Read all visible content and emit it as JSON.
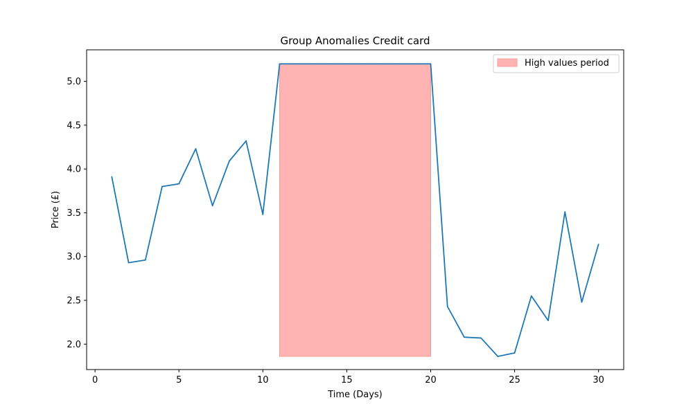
{
  "chart_data": {
    "type": "line",
    "title": "Group Anomalies Credit card",
    "xlabel": "Time (Days)",
    "ylabel": "Price (£)",
    "xlim": [
      -0.5,
      31.5
    ],
    "ylim": [
      1.71,
      5.36
    ],
    "xticks": [
      0,
      5,
      10,
      15,
      20,
      25,
      30
    ],
    "xtick_labels": [
      "0",
      "5",
      "10",
      "15",
      "20",
      "25",
      "30"
    ],
    "yticks": [
      2.0,
      2.5,
      3.0,
      3.5,
      4.0,
      4.5,
      5.0
    ],
    "ytick_labels": [
      "2.0",
      "2.5",
      "3.0",
      "3.5",
      "4.0",
      "4.5",
      "5.0"
    ],
    "grid": false,
    "legend_position": "top-right",
    "series": [
      {
        "color": "#1f77b4",
        "x": [
          1,
          2,
          3,
          4,
          5,
          6,
          7,
          8,
          9,
          10,
          11,
          12,
          13,
          14,
          15,
          16,
          17,
          18,
          19,
          20,
          21,
          22,
          23,
          24,
          25,
          26,
          27,
          28,
          29,
          30
        ],
        "y": [
          3.91,
          2.93,
          2.96,
          3.8,
          3.83,
          4.23,
          3.58,
          4.09,
          4.32,
          3.48,
          5.2,
          5.2,
          5.2,
          5.2,
          5.2,
          5.2,
          5.2,
          5.2,
          5.2,
          5.2,
          2.43,
          2.08,
          2.07,
          1.86,
          1.9,
          2.55,
          2.27,
          3.51,
          2.48,
          3.14
        ]
      }
    ],
    "shaded_region": {
      "name": "High values period",
      "color": "#ff9999",
      "opacity": 0.75,
      "x_start": 11,
      "x_end": 20,
      "y_bottom": 1.86,
      "y_top": 5.2
    }
  }
}
